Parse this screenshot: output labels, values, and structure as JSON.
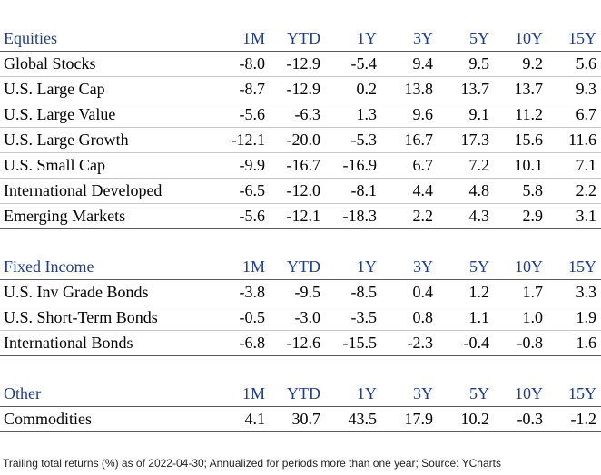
{
  "columns": [
    "1M",
    "YTD",
    "1Y",
    "3Y",
    "5Y",
    "10Y",
    "15Y"
  ],
  "sections": [
    {
      "title": "Equities",
      "rows": [
        {
          "name": "Global Stocks",
          "values": [
            "-8.0",
            "-12.9",
            "-5.4",
            "9.4",
            "9.5",
            "9.2",
            "5.6"
          ]
        },
        {
          "name": "U.S. Large Cap",
          "values": [
            "-8.7",
            "-12.9",
            "0.2",
            "13.8",
            "13.7",
            "13.7",
            "9.3"
          ]
        },
        {
          "name": "U.S. Large Value",
          "values": [
            "-5.6",
            "-6.3",
            "1.3",
            "9.6",
            "9.1",
            "11.2",
            "6.7"
          ]
        },
        {
          "name": "U.S. Large Growth",
          "values": [
            "-12.1",
            "-20.0",
            "-5.3",
            "16.7",
            "17.3",
            "15.6",
            "11.6"
          ]
        },
        {
          "name": "U.S. Small Cap",
          "values": [
            "-9.9",
            "-16.7",
            "-16.9",
            "6.7",
            "7.2",
            "10.1",
            "7.1"
          ]
        },
        {
          "name": "International Developed",
          "values": [
            "-6.5",
            "-12.0",
            "-8.1",
            "4.4",
            "4.8",
            "5.8",
            "2.2"
          ]
        },
        {
          "name": "Emerging Markets",
          "values": [
            "-5.6",
            "-12.1",
            "-18.3",
            "2.2",
            "4.3",
            "2.9",
            "3.1"
          ]
        }
      ]
    },
    {
      "title": "Fixed Income",
      "rows": [
        {
          "name": "U.S. Inv Grade Bonds",
          "values": [
            "-3.8",
            "-9.5",
            "-8.5",
            "0.4",
            "1.2",
            "1.7",
            "3.3"
          ]
        },
        {
          "name": "U.S. Short-Term Bonds",
          "values": [
            "-0.5",
            "-3.0",
            "-3.5",
            "0.8",
            "1.1",
            "1.0",
            "1.9"
          ]
        },
        {
          "name": "International Bonds",
          "values": [
            "-6.8",
            "-12.6",
            "-15.5",
            "-2.3",
            "-0.4",
            "-0.8",
            "1.6"
          ]
        }
      ]
    },
    {
      "title": "Other",
      "rows": [
        {
          "name": "Commodities",
          "values": [
            "4.1",
            "30.7",
            "43.5",
            "17.9",
            "10.2",
            "-0.3",
            "-1.2"
          ]
        }
      ]
    }
  ],
  "footnote": "Trailing total returns (%) as of 2022-04-30; Annualized for periods more than one year; Source: YCharts",
  "colors": {
    "header_text": "#1f3d8c",
    "rule_dark": "#5a5a5a",
    "rule_light": "#c8c8c8"
  }
}
